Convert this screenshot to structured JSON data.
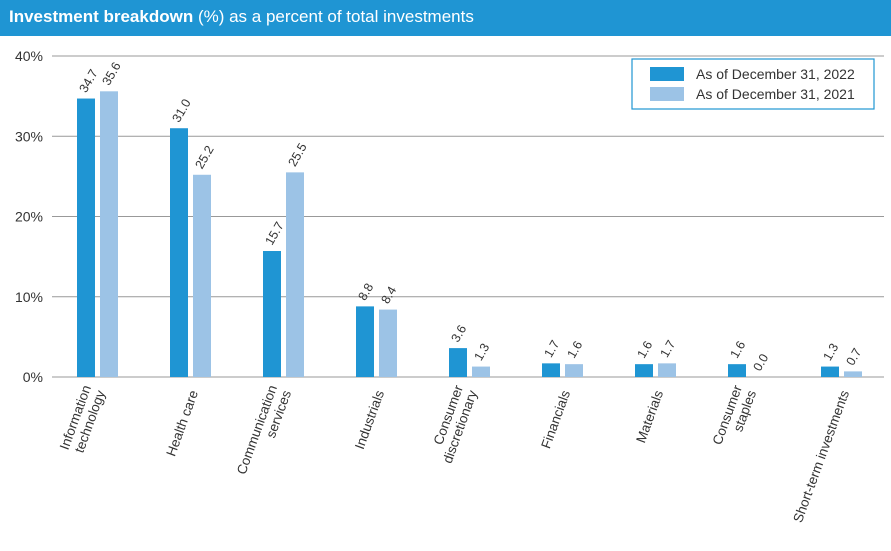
{
  "header": {
    "title_bold": "Investment breakdown",
    "title_rest": " (%) as a percent of total investments"
  },
  "colors": {
    "banner": "#1f95d3",
    "series_2022": "#1f95d3",
    "series_2021": "#9cc3e6",
    "grid": "#999999",
    "legend_border": "#1f95d3"
  },
  "chart_data": {
    "type": "bar",
    "title": "Investment breakdown (%) as a percent of total investments",
    "categories": [
      [
        "Information",
        "technology"
      ],
      [
        "Health care"
      ],
      [
        "Communication",
        "services"
      ],
      [
        "Industrials"
      ],
      [
        "Consumer",
        "discretionary"
      ],
      [
        "Financials"
      ],
      [
        "Materials"
      ],
      [
        "Consumer",
        "staples"
      ],
      [
        "Short-term investments"
      ]
    ],
    "series": [
      {
        "name": "As of December 31, 2022",
        "values": [
          34.7,
          31.0,
          15.7,
          8.8,
          3.6,
          1.7,
          1.6,
          1.6,
          1.3
        ],
        "labels": [
          "34.7",
          "31.0",
          "15.7",
          "8.8",
          "3.6",
          "1.7",
          "1.6",
          "1.6",
          "1.3"
        ]
      },
      {
        "name": "As of December 31, 2021",
        "values": [
          35.6,
          25.2,
          25.5,
          8.4,
          1.3,
          1.6,
          1.7,
          0.0,
          0.7
        ],
        "labels": [
          "35.6",
          "25.2",
          "25.5",
          "8.4",
          "1.3",
          "1.6",
          "1.7",
          "0.0",
          "0.7"
        ]
      }
    ],
    "ylim": [
      0,
      40
    ],
    "yticks": [
      0,
      10,
      20,
      30,
      40
    ],
    "ytick_labels": [
      "0%",
      "10%",
      "20%",
      "30%",
      "40%"
    ],
    "grid": true,
    "legend_position": "top-right"
  }
}
